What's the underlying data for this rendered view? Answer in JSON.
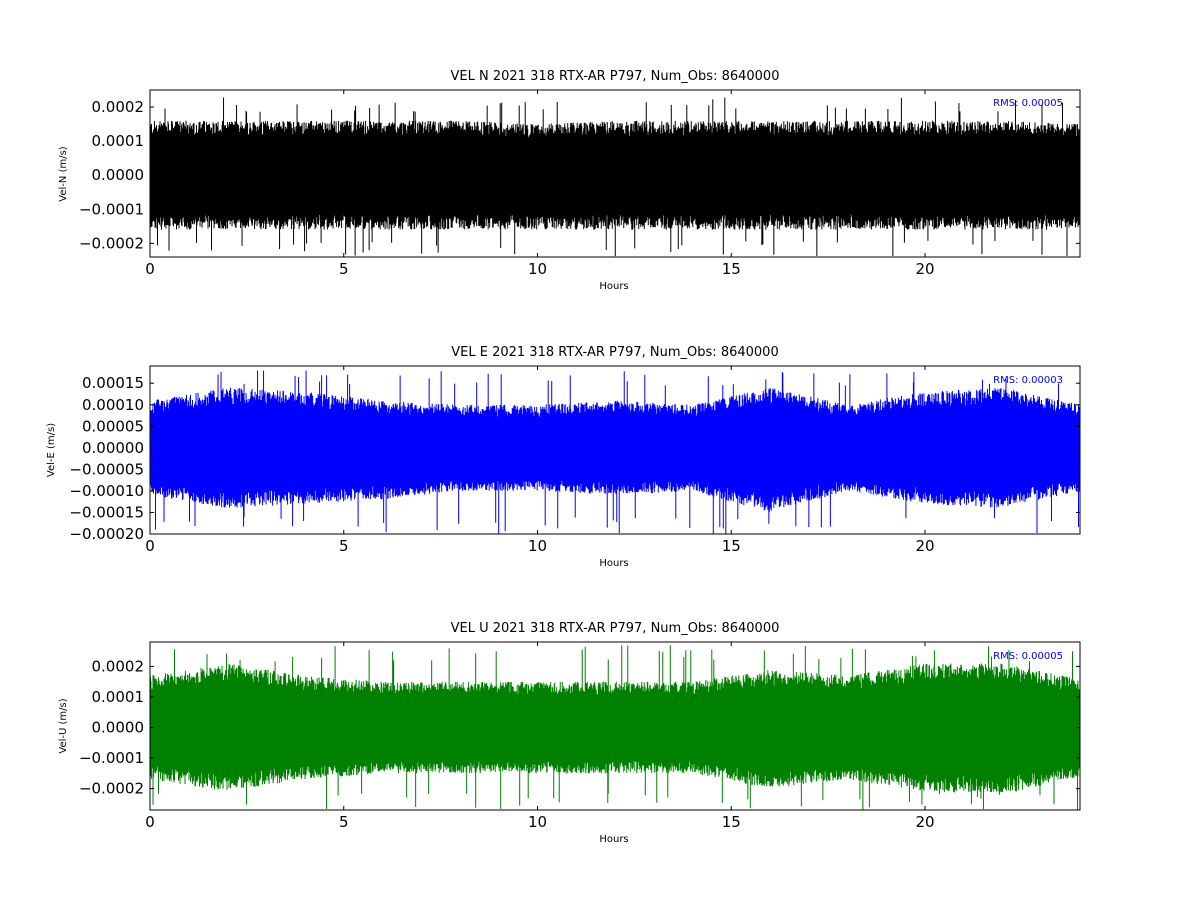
{
  "chart_data": [
    {
      "type": "line",
      "title": "VEL N 2021 318 RTX-AR  P797, Num_Obs: 8640000",
      "xlabel": "Hours",
      "ylabel": "Vel-N (m/s)",
      "xlim": [
        0,
        24
      ],
      "ylim": [
        -0.00024,
        0.00025
      ],
      "xticks": [
        0,
        5,
        10,
        15,
        20
      ],
      "xtick_labels": [
        "0",
        "5",
        "10",
        "15",
        "20"
      ],
      "yticks": [
        -0.0002,
        -0.0001,
        0.0,
        0.0001,
        0.0002
      ],
      "ytick_labels": [
        "−0.0002",
        "−0.0001",
        "0.0000",
        "0.0001",
        "0.0002"
      ],
      "rms_label": "RMS:  0.00005",
      "series_color": "#000000",
      "grid": false,
      "envelope": {
        "hours": [
          0,
          2,
          4,
          6,
          8,
          10,
          12,
          14,
          16,
          18,
          20,
          22,
          24
        ],
        "upper": [
          0.00016,
          0.00016,
          0.00016,
          0.00016,
          0.00016,
          0.00015,
          0.00016,
          0.00016,
          0.00016,
          0.00016,
          0.00016,
          0.00016,
          0.00015
        ],
        "lower": [
          -0.00016,
          -0.00016,
          -0.00016,
          -0.00016,
          -0.00016,
          -0.00016,
          -0.00016,
          -0.00016,
          -0.00016,
          -0.00016,
          -0.00016,
          -0.00016,
          -0.00016
        ],
        "spike_max": 0.00023,
        "spike_min": -0.00024
      }
    },
    {
      "type": "line",
      "title": "VEL E 2021 318 RTX-AR  P797, Num_Obs: 8640000",
      "xlabel": "Hours",
      "ylabel": "Vel-E (m/s)",
      "xlim": [
        0,
        24
      ],
      "ylim": [
        -0.0002,
        0.00019
      ],
      "xticks": [
        0,
        5,
        10,
        15,
        20
      ],
      "xtick_labels": [
        "0",
        "5",
        "10",
        "15",
        "20"
      ],
      "yticks": [
        -0.0002,
        -0.00015,
        -0.0001,
        -5e-05,
        0.0,
        5e-05,
        0.0001,
        0.00015
      ],
      "ytick_labels": [
        "−0.00020",
        "−0.00015",
        "−0.00010",
        "−0.00005",
        "0.00000",
        "0.00005",
        "0.00010",
        "0.00015"
      ],
      "rms_label": "RMS:  0.00003",
      "series_color": "#0000ff",
      "grid": false,
      "envelope": {
        "hours": [
          0,
          2,
          4,
          6,
          8,
          10,
          12,
          14,
          16,
          18,
          20,
          22,
          24
        ],
        "upper": [
          0.00011,
          0.00014,
          0.00013,
          0.00011,
          0.0001,
          0.0001,
          0.00011,
          0.0001,
          0.00014,
          0.0001,
          0.00013,
          0.00014,
          0.0001
        ],
        "lower": [
          -0.00011,
          -0.00014,
          -0.00013,
          -0.00012,
          -0.0001,
          -0.0001,
          -0.00011,
          -0.0001,
          -0.00015,
          -0.0001,
          -0.00013,
          -0.00014,
          -0.0001
        ],
        "spike_max": 0.00018,
        "spike_min": -0.0002
      }
    },
    {
      "type": "line",
      "title": "VEL U 2021 318 RTX-AR  P797, Num_Obs: 8640000",
      "xlabel": "Hours",
      "ylabel": "Vel-U (m/s)",
      "xlim": [
        0,
        24
      ],
      "ylim": [
        -0.00027,
        0.00028
      ],
      "xticks": [
        0,
        5,
        10,
        15,
        20
      ],
      "xtick_labels": [
        "0",
        "5",
        "10",
        "15",
        "20"
      ],
      "yticks": [
        -0.0002,
        -0.0001,
        0.0,
        0.0001,
        0.0002
      ],
      "ytick_labels": [
        "−0.0002",
        "−0.0001",
        "0.0000",
        "0.0001",
        "0.0002"
      ],
      "rms_label": "RMS:  0.00005",
      "series_color": "#008000",
      "grid": false,
      "envelope": {
        "hours": [
          0,
          2,
          4,
          6,
          8,
          10,
          12,
          14,
          16,
          18,
          20,
          22,
          24
        ],
        "upper": [
          0.00017,
          0.00021,
          0.00017,
          0.00015,
          0.00015,
          0.00015,
          0.00015,
          0.00015,
          0.00019,
          0.00017,
          0.00021,
          0.00021,
          0.00016
        ],
        "lower": [
          -0.00017,
          -0.00021,
          -0.00017,
          -0.00015,
          -0.00015,
          -0.00015,
          -0.00015,
          -0.00015,
          -0.0002,
          -0.00017,
          -0.00021,
          -0.00022,
          -0.00016
        ],
        "spike_max": 0.00027,
        "spike_min": -0.00027
      }
    }
  ]
}
